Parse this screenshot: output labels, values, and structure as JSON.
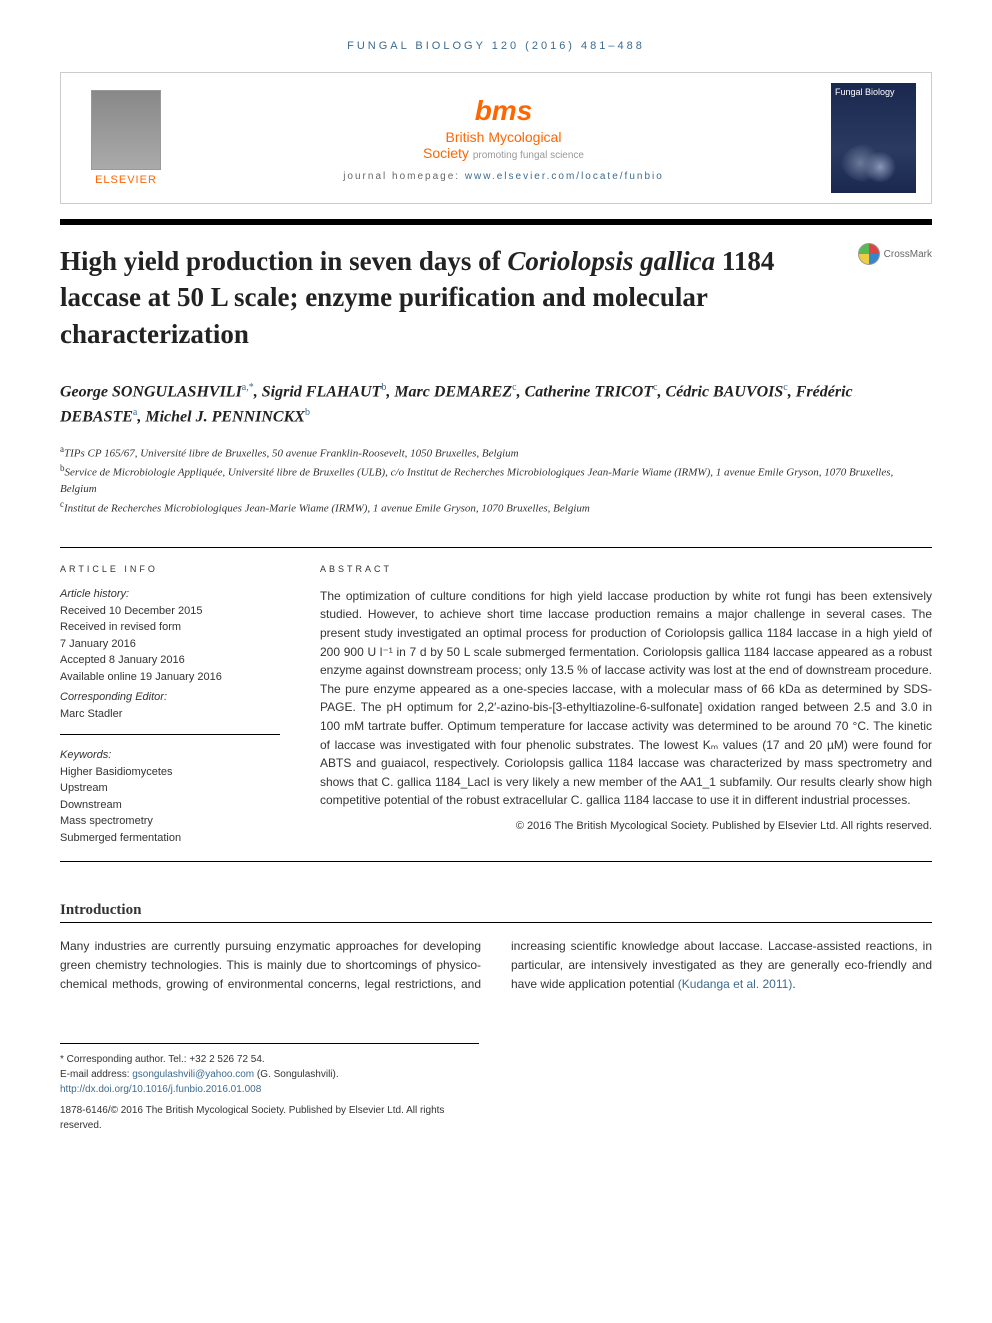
{
  "header": {
    "citation": "FUNGAL BIOLOGY 120 (2016) 481–488",
    "elsevier_label": "ELSEVIER",
    "bms_brand": "bms",
    "bms_name": "British Mycological",
    "bms_society": "Society",
    "bms_tagline": "promoting fungal science",
    "homepage_label": "journal homepage: ",
    "homepage_url": "www.elsevier.com/locate/funbio",
    "cover_title": "Fungal Biology"
  },
  "title": {
    "line1": "High yield production in seven days of ",
    "italic1": "Coriolopsis gallica",
    "line2": " 1184 laccase at 50 L scale; enzyme purification and molecular characterization"
  },
  "crossmark": "CrossMark",
  "authors_html": "George SONGULASHVILI<sup>a,*</sup>, Sigrid FLAHAUT<sup>b</sup>, Marc DEMAREZ<sup>c</sup>, Catherine TRICOT<sup>c</sup>, Cédric BAUVOIS<sup>c</sup>, Frédéric DEBASTE<sup>a</sup>, Michel J. PENNINCKX<sup>b</sup>",
  "affiliations": [
    {
      "sup": "a",
      "text": "TIPs CP 165/67, Université libre de Bruxelles, 50 avenue Franklin-Roosevelt, 1050 Bruxelles, Belgium"
    },
    {
      "sup": "b",
      "text": "Service de Microbiologie Appliquée, Université libre de Bruxelles (ULB), c/o Institut de Recherches Microbiologiques Jean-Marie Wiame (IRMW), 1 avenue Emile Gryson, 1070 Bruxelles, Belgium"
    },
    {
      "sup": "c",
      "text": "Institut de Recherches Microbiologiques Jean-Marie Wiame (IRMW), 1 avenue Emile Gryson, 1070 Bruxelles, Belgium"
    }
  ],
  "article_info": {
    "heading": "ARTICLE INFO",
    "history_label": "Article history:",
    "history": [
      "Received 10 December 2015",
      "Received in revised form",
      "7 January 2016",
      "Accepted 8 January 2016",
      "Available online 19 January 2016"
    ],
    "editor_label": "Corresponding Editor:",
    "editor": "Marc Stadler",
    "keywords_label": "Keywords:",
    "keywords": [
      "Higher Basidiomycetes",
      "Upstream",
      "Downstream",
      "Mass spectrometry",
      "Submerged fermentation"
    ]
  },
  "abstract": {
    "heading": "ABSTRACT",
    "text": "The optimization of culture conditions for high yield laccase production by white rot fungi has been extensively studied. However, to achieve short time laccase production remains a major challenge in several cases. The present study investigated an optimal process for production of Coriolopsis gallica 1184 laccase in a high yield of 200 900 U l⁻¹ in 7 d by 50 L scale submerged fermentation. Coriolopsis gallica 1184 laccase appeared as a robust enzyme against downstream process; only 13.5 % of laccase activity was lost at the end of downstream procedure. The pure enzyme appeared as a one-species laccase, with a molecular mass of 66 kDa as determined by SDS-PAGE. The pH optimum for 2,2′-azino-bis-[3-ethyltiazoline-6-sulfonate] oxidation ranged between 2.5 and 3.0 in 100 mM tartrate buffer. Optimum temperature for laccase activity was determined to be around 70 °C. The kinetic of laccase was investigated with four phenolic substrates. The lowest Kₘ values (17 and 20 µM) were found for ABTS and guaiacol, respectively. Coriolopsis gallica 1184 laccase was characterized by mass spectrometry and shows that C. gallica 1184_LacI is very likely a new member of the AA1_1 subfamily. Our results clearly show high competitive potential of the robust extracellular C. gallica 1184 laccase to use it in different industrial processes.",
    "copyright": "© 2016 The British Mycological Society. Published by Elsevier Ltd. All rights reserved."
  },
  "intro": {
    "heading": "Introduction",
    "para1": "Many industries are currently pursuing enzymatic approaches for developing green chemistry technologies. This is mainly due to shortcomings of physico-chemical methods,",
    "para2": "growing of environmental concerns, legal restrictions, and increasing scientific knowledge about laccase. Laccase-assisted reactions, in particular, are intensively investigated as they are generally eco-friendly and have wide application potential ",
    "ref": "(Kudanga et al. 2011)",
    "period": "."
  },
  "footnotes": {
    "corr_label": "* Corresponding author.",
    "tel": " Tel.: +32 2 526 72 54.",
    "email_label": "E-mail address: ",
    "email": "gsongulashvili@yahoo.com",
    "email_who": " (G. Songulashvili).",
    "doi": "http://dx.doi.org/10.1016/j.funbio.2016.01.008",
    "issn_line": "1878-6146/© 2016 The British Mycological Society. Published by Elsevier Ltd. All rights reserved."
  },
  "colors": {
    "link": "#3d6b8f",
    "orange": "#ff6600",
    "text": "#333333",
    "rule": "#000000"
  }
}
